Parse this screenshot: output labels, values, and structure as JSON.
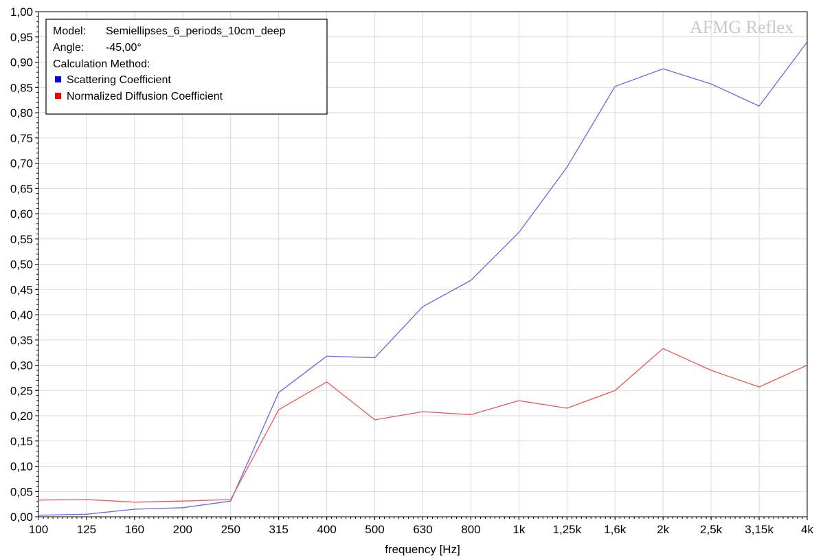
{
  "chart_data": {
    "type": "line",
    "watermark": "AFMG Reflex",
    "xlabel": "frequency [Hz]",
    "ylabel": "",
    "ylim": [
      0,
      1
    ],
    "grid": true,
    "legend_position": "top-left",
    "legend": {
      "model_label": "Model:",
      "model_value": "Semiellipses_6_periods_10cm_deep",
      "angle_label": "Angle:",
      "angle_value": "-45,00°",
      "method_label": "Calculation Method:"
    },
    "categories": [
      "100",
      "125",
      "160",
      "200",
      "250",
      "315",
      "400",
      "500",
      "630",
      "800",
      "1k",
      "1,25k",
      "1,6k",
      "2k",
      "2,5k",
      "3,15k",
      "4k"
    ],
    "y_ticks": [
      "0,00",
      "0,05",
      "0,10",
      "0,15",
      "0,20",
      "0,25",
      "0,30",
      "0,35",
      "0,40",
      "0,45",
      "0,50",
      "0,55",
      "0,60",
      "0,65",
      "0,70",
      "0,75",
      "0,80",
      "0,85",
      "0,90",
      "0,95",
      "1,00"
    ],
    "series": [
      {
        "name": "Scattering Coefficient",
        "color": "#6666ee",
        "marker_color": "#0000ff",
        "values": [
          0.003,
          0.005,
          0.015,
          0.018,
          0.031,
          0.246,
          0.318,
          0.315,
          0.416,
          0.468,
          0.563,
          0.692,
          0.852,
          0.887,
          0.857,
          0.813,
          0.94
        ]
      },
      {
        "name": "Normalized Diffusion Coefficient",
        "color": "#ee5555",
        "marker_color": "#ff0000",
        "values": [
          0.033,
          0.034,
          0.029,
          0.031,
          0.034,
          0.212,
          0.267,
          0.192,
          0.208,
          0.202,
          0.23,
          0.215,
          0.25,
          0.333,
          0.29,
          0.257,
          0.3
        ]
      }
    ]
  }
}
